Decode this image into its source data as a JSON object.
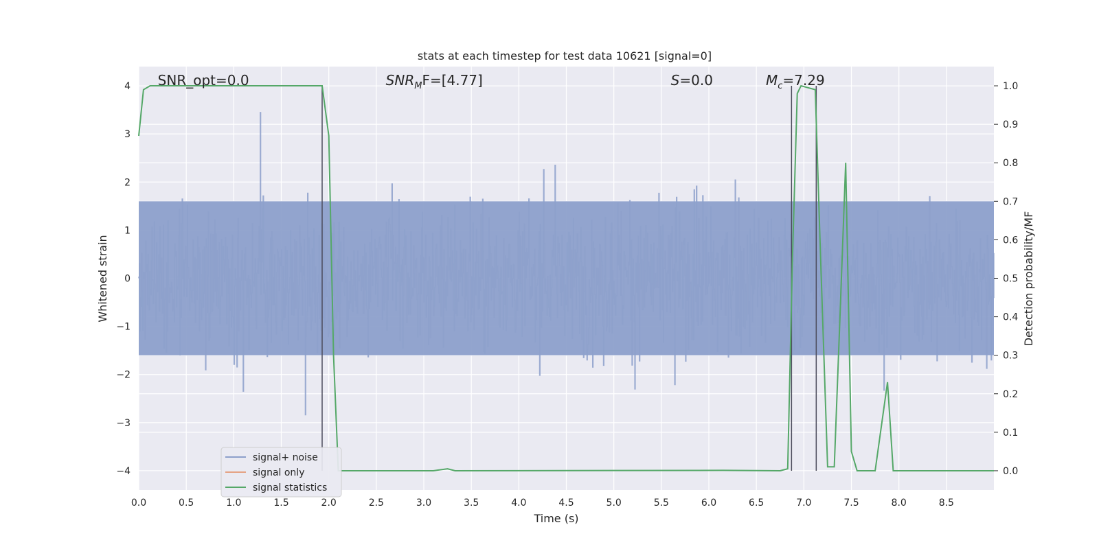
{
  "chart_data": {
    "type": "line",
    "title": "stats at each timestep for test data 10621 [signal=0]",
    "xlabel": "Time (s)",
    "ylabel": "Whitened strain",
    "ylabel_right": "Detection probability/MF",
    "xlim": [
      0.0,
      9.0
    ],
    "ylim": [
      -4.4,
      4.4
    ],
    "ylim_right": [
      -0.05,
      1.05
    ],
    "x_ticks": [
      "0.0",
      "0.5",
      "1.0",
      "1.5",
      "2.0",
      "2.5",
      "3.0",
      "3.5",
      "4.0",
      "4.5",
      "5.0",
      "5.5",
      "6.0",
      "6.5",
      "7.0",
      "7.5",
      "8.0",
      "8.5"
    ],
    "y_ticks": [
      "4",
      "3",
      "2",
      "1",
      "0",
      "−1",
      "−2",
      "−3",
      "−4"
    ],
    "y_ticks_right": [
      "1.0",
      "0.9",
      "0.8",
      "0.7",
      "0.6",
      "0.5",
      "0.4",
      "0.3",
      "0.2",
      "0.1",
      "0.0"
    ],
    "grid": true,
    "legend_position": "lower-left",
    "colors": {
      "signal_noise": "#8da0cb",
      "signal_only": "#e5a283",
      "signal_statistics": "#55a868",
      "vlines": "#4c4c5c",
      "background": "#eaeaf2"
    },
    "annotations": [
      {
        "text": "SNR_opt=0.0",
        "x": 0.2
      },
      {
        "text_main": "SNR",
        "text_sub": "M",
        "text_rest": "F=[4.77]",
        "x": 2.6
      },
      {
        "text_main": "S",
        "text_rest": "=0.0",
        "x": 5.6
      },
      {
        "text_main": "M",
        "text_sub": "c",
        "text_rest": "=7.29",
        "x": 6.6
      }
    ],
    "vertical_lines": [
      1.93,
      6.87,
      7.13
    ],
    "series": [
      {
        "name": "signal+ noise",
        "type": "noise",
        "x_range": [
          0.0,
          9.0
        ],
        "typical_abs": 1.6,
        "peak_range": [
          2.0,
          3.9
        ]
      },
      {
        "name": "signal only",
        "values": []
      },
      {
        "name": "signal statistics",
        "axis": "right",
        "x": [
          0.0,
          0.05,
          0.12,
          0.5,
          1.0,
          1.5,
          1.93,
          2.0,
          2.05,
          2.1,
          3.1,
          3.25,
          3.33,
          6.15,
          6.75,
          6.83,
          6.88,
          6.93,
          6.97,
          7.12,
          7.17,
          7.25,
          7.32,
          7.38,
          7.44,
          7.5,
          7.56,
          7.75,
          7.88,
          7.94,
          8.0,
          9.0
        ],
        "y": [
          0.87,
          0.99,
          1.0,
          1.0,
          1.0,
          1.0,
          1.0,
          0.87,
          0.3,
          0.0,
          0.0,
          0.005,
          0.0,
          0.001,
          0.0,
          0.005,
          0.55,
          0.98,
          1.0,
          0.99,
          0.6,
          0.01,
          0.01,
          0.4,
          0.8,
          0.05,
          0.0,
          0.0,
          0.23,
          0.0,
          0.0,
          0.0
        ]
      }
    ]
  }
}
